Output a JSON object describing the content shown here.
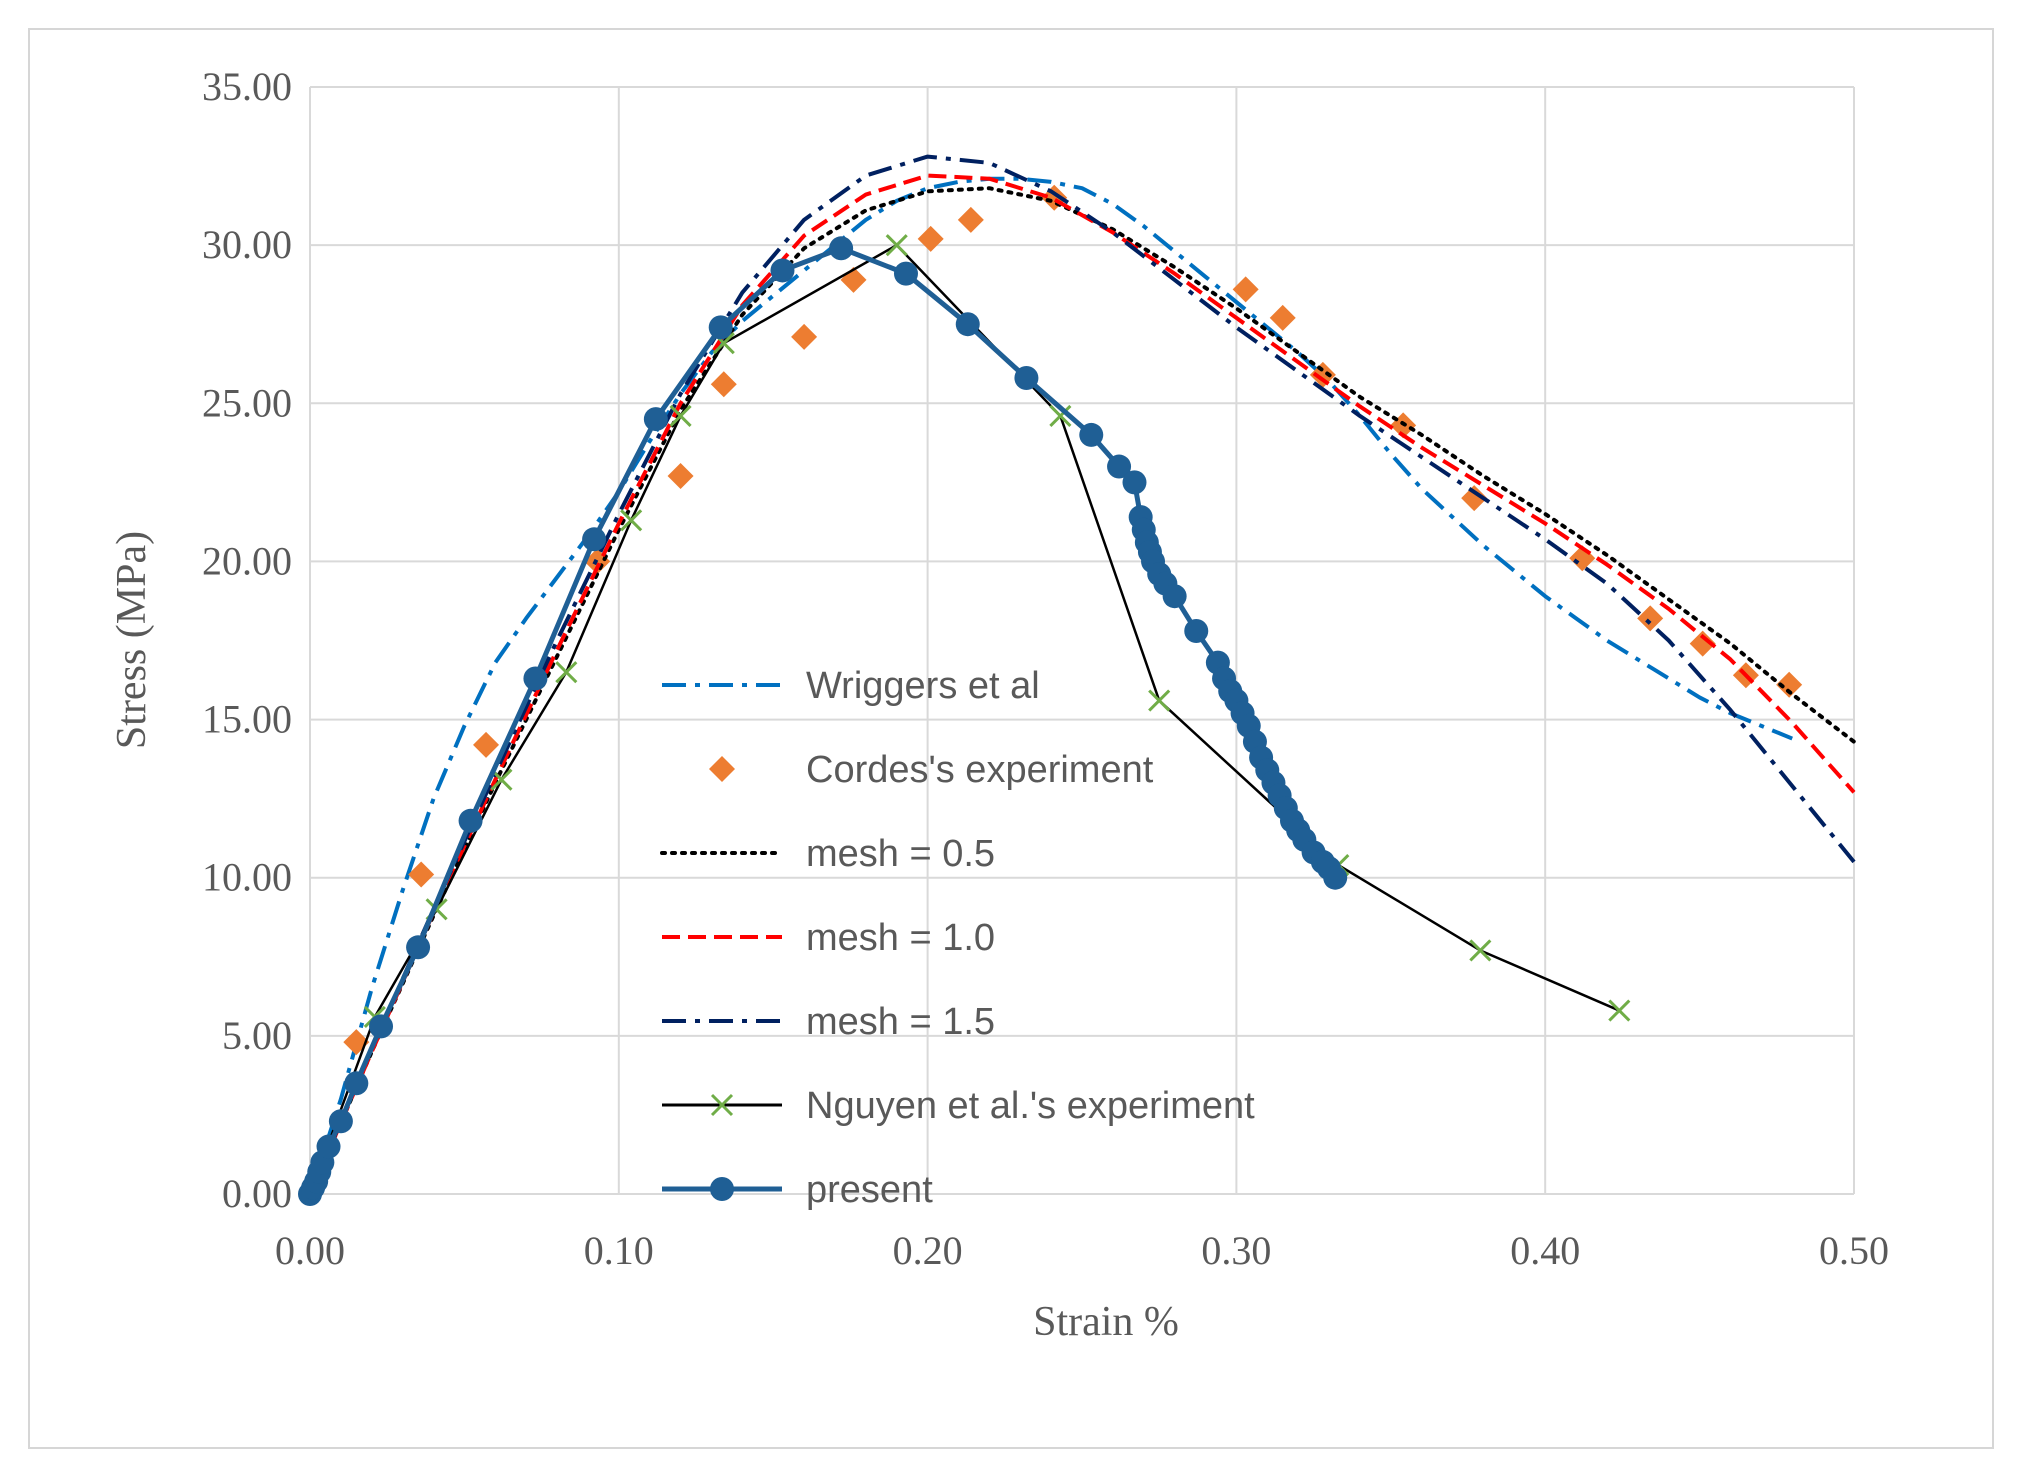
{
  "chart_data": {
    "type": "line",
    "title": "",
    "xlabel": "Strain %",
    "ylabel": "Stress (MPa)",
    "xlim": [
      0,
      0.5
    ],
    "ylim": [
      0,
      35
    ],
    "grid": true,
    "legend_position": "center",
    "x_ticks": [
      "0.00",
      "0.10",
      "0.20",
      "0.30",
      "0.40",
      "0.50"
    ],
    "y_ticks": [
      "0.00",
      "5.00",
      "10.00",
      "15.00",
      "20.00",
      "25.00",
      "30.00",
      "35.00"
    ],
    "series": [
      {
        "name": "Wriggers et al",
        "color": "#0070c0",
        "style": "dash-dot",
        "marker": "none",
        "points": [
          [
            0,
            0
          ],
          [
            0.01,
            3.0
          ],
          [
            0.02,
            6.5
          ],
          [
            0.03,
            9.6
          ],
          [
            0.04,
            12.5
          ],
          [
            0.05,
            14.8
          ],
          [
            0.06,
            16.8
          ],
          [
            0.07,
            18.2
          ],
          [
            0.08,
            19.5
          ],
          [
            0.09,
            20.8
          ],
          [
            0.1,
            22.2
          ],
          [
            0.11,
            23.8
          ],
          [
            0.12,
            25.3
          ],
          [
            0.13,
            26.6
          ],
          [
            0.14,
            27.6
          ],
          [
            0.15,
            28.4
          ],
          [
            0.16,
            29.2
          ],
          [
            0.17,
            30.0
          ],
          [
            0.18,
            30.8
          ],
          [
            0.19,
            31.4
          ],
          [
            0.2,
            31.8
          ],
          [
            0.21,
            32.0
          ],
          [
            0.22,
            32.1
          ],
          [
            0.23,
            32.1
          ],
          [
            0.24,
            32.0
          ],
          [
            0.25,
            31.8
          ],
          [
            0.26,
            31.3
          ],
          [
            0.27,
            30.6
          ],
          [
            0.28,
            29.8
          ],
          [
            0.29,
            29.0
          ],
          [
            0.3,
            28.2
          ],
          [
            0.31,
            27.4
          ],
          [
            0.32,
            26.6
          ],
          [
            0.33,
            25.7
          ],
          [
            0.34,
            24.6
          ],
          [
            0.35,
            23.4
          ],
          [
            0.36,
            22.3
          ],
          [
            0.37,
            21.4
          ],
          [
            0.38,
            20.5
          ],
          [
            0.39,
            19.7
          ],
          [
            0.4,
            18.9
          ],
          [
            0.41,
            18.2
          ],
          [
            0.42,
            17.5
          ],
          [
            0.43,
            16.9
          ],
          [
            0.44,
            16.3
          ],
          [
            0.45,
            15.7
          ],
          [
            0.46,
            15.2
          ],
          [
            0.47,
            14.8
          ],
          [
            0.48,
            14.4
          ]
        ]
      },
      {
        "name": "Cordes's experiment",
        "color": "#ed7d31",
        "style": "none",
        "marker": "diamond",
        "points": [
          [
            0.015,
            4.8
          ],
          [
            0.036,
            10.1
          ],
          [
            0.057,
            14.2
          ],
          [
            0.093,
            20.0
          ],
          [
            0.12,
            22.7
          ],
          [
            0.134,
            25.6
          ],
          [
            0.16,
            27.1
          ],
          [
            0.176,
            28.9
          ],
          [
            0.201,
            30.2
          ],
          [
            0.214,
            30.8
          ],
          [
            0.241,
            31.5
          ],
          [
            0.303,
            28.6
          ],
          [
            0.315,
            27.7
          ],
          [
            0.328,
            25.9
          ],
          [
            0.354,
            24.3
          ],
          [
            0.377,
            22.0
          ],
          [
            0.412,
            20.1
          ],
          [
            0.434,
            18.2
          ],
          [
            0.451,
            17.4
          ],
          [
            0.465,
            16.4
          ],
          [
            0.479,
            16.1
          ]
        ]
      },
      {
        "name": "mesh = 0.5",
        "color": "#000000",
        "style": "dotted",
        "marker": "none",
        "points": [
          [
            0,
            0
          ],
          [
            0.02,
            4.5
          ],
          [
            0.04,
            8.8
          ],
          [
            0.06,
            13.0
          ],
          [
            0.08,
            17.0
          ],
          [
            0.1,
            21.0
          ],
          [
            0.12,
            24.8
          ],
          [
            0.14,
            27.8
          ],
          [
            0.16,
            29.9
          ],
          [
            0.18,
            31.1
          ],
          [
            0.2,
            31.7
          ],
          [
            0.22,
            31.8
          ],
          [
            0.24,
            31.4
          ],
          [
            0.26,
            30.5
          ],
          [
            0.28,
            29.3
          ],
          [
            0.3,
            28.0
          ],
          [
            0.32,
            26.6
          ],
          [
            0.34,
            25.2
          ],
          [
            0.36,
            24.0
          ],
          [
            0.38,
            22.7
          ],
          [
            0.4,
            21.5
          ],
          [
            0.42,
            20.2
          ],
          [
            0.44,
            18.8
          ],
          [
            0.46,
            17.4
          ],
          [
            0.48,
            15.8
          ],
          [
            0.5,
            14.3
          ]
        ]
      },
      {
        "name": "mesh = 1.0",
        "color": "#ff0000",
        "style": "dashed",
        "marker": "none",
        "points": [
          [
            0,
            0
          ],
          [
            0.02,
            4.5
          ],
          [
            0.04,
            8.9
          ],
          [
            0.06,
            13.1
          ],
          [
            0.08,
            17.2
          ],
          [
            0.1,
            21.2
          ],
          [
            0.12,
            25.0
          ],
          [
            0.14,
            28.1
          ],
          [
            0.16,
            30.3
          ],
          [
            0.18,
            31.6
          ],
          [
            0.2,
            32.2
          ],
          [
            0.22,
            32.1
          ],
          [
            0.24,
            31.5
          ],
          [
            0.26,
            30.4
          ],
          [
            0.28,
            29.1
          ],
          [
            0.3,
            27.7
          ],
          [
            0.32,
            26.3
          ],
          [
            0.34,
            24.9
          ],
          [
            0.36,
            23.6
          ],
          [
            0.38,
            22.4
          ],
          [
            0.4,
            21.2
          ],
          [
            0.42,
            19.9
          ],
          [
            0.44,
            18.5
          ],
          [
            0.46,
            16.9
          ],
          [
            0.48,
            14.9
          ],
          [
            0.5,
            12.7
          ]
        ]
      },
      {
        "name": "mesh = 1.5",
        "color": "#002060",
        "style": "dash-dot",
        "marker": "none",
        "points": [
          [
            0,
            0
          ],
          [
            0.02,
            4.6
          ],
          [
            0.04,
            9.0
          ],
          [
            0.06,
            13.3
          ],
          [
            0.08,
            17.5
          ],
          [
            0.1,
            21.5
          ],
          [
            0.12,
            25.3
          ],
          [
            0.14,
            28.5
          ],
          [
            0.16,
            30.8
          ],
          [
            0.18,
            32.2
          ],
          [
            0.2,
            32.8
          ],
          [
            0.22,
            32.6
          ],
          [
            0.24,
            31.7
          ],
          [
            0.26,
            30.4
          ],
          [
            0.28,
            28.9
          ],
          [
            0.3,
            27.4
          ],
          [
            0.32,
            26.0
          ],
          [
            0.34,
            24.6
          ],
          [
            0.36,
            23.3
          ],
          [
            0.38,
            22.0
          ],
          [
            0.4,
            20.7
          ],
          [
            0.42,
            19.3
          ],
          [
            0.44,
            17.5
          ],
          [
            0.46,
            15.3
          ],
          [
            0.48,
            12.9
          ],
          [
            0.5,
            10.5
          ]
        ]
      },
      {
        "name": "Nguyen et al.'s experiment",
        "color": "#000000",
        "marker_color": "#70ad47",
        "style": "solid",
        "marker": "x",
        "points": [
          [
            0,
            0
          ],
          [
            0.021,
            5.6
          ],
          [
            0.041,
            9.0
          ],
          [
            0.062,
            13.1
          ],
          [
            0.083,
            16.5
          ],
          [
            0.104,
            21.3
          ],
          [
            0.12,
            24.6
          ],
          [
            0.134,
            26.9
          ],
          [
            0.19,
            30.0
          ],
          [
            0.243,
            24.6
          ],
          [
            0.275,
            15.6
          ],
          [
            0.333,
            10.4
          ],
          [
            0.379,
            7.7
          ],
          [
            0.424,
            5.8
          ]
        ]
      },
      {
        "name": "present",
        "color": "#1f5f95",
        "style": "solid",
        "marker": "circle",
        "points": [
          [
            0,
            0
          ],
          [
            0.001,
            0.2
          ],
          [
            0.002,
            0.4
          ],
          [
            0.003,
            0.7
          ],
          [
            0.004,
            1.0
          ],
          [
            0.006,
            1.5
          ],
          [
            0.01,
            2.3
          ],
          [
            0.015,
            3.5
          ],
          [
            0.023,
            5.3
          ],
          [
            0.035,
            7.8
          ],
          [
            0.052,
            11.8
          ],
          [
            0.073,
            16.3
          ],
          [
            0.092,
            20.7
          ],
          [
            0.112,
            24.5
          ],
          [
            0.133,
            27.4
          ],
          [
            0.153,
            29.2
          ],
          [
            0.172,
            29.9
          ],
          [
            0.193,
            29.1
          ],
          [
            0.213,
            27.5
          ],
          [
            0.232,
            25.8
          ],
          [
            0.253,
            24.0
          ],
          [
            0.262,
            23.0
          ],
          [
            0.267,
            22.5
          ],
          [
            0.269,
            21.4
          ],
          [
            0.27,
            21.0
          ],
          [
            0.271,
            20.6
          ],
          [
            0.272,
            20.3
          ],
          [
            0.273,
            20.0
          ],
          [
            0.275,
            19.6
          ],
          [
            0.277,
            19.3
          ],
          [
            0.28,
            18.9
          ],
          [
            0.287,
            17.8
          ],
          [
            0.294,
            16.8
          ],
          [
            0.296,
            16.3
          ],
          [
            0.298,
            15.9
          ],
          [
            0.3,
            15.6
          ],
          [
            0.302,
            15.2
          ],
          [
            0.304,
            14.8
          ],
          [
            0.306,
            14.3
          ],
          [
            0.308,
            13.8
          ],
          [
            0.31,
            13.4
          ],
          [
            0.312,
            13.0
          ],
          [
            0.314,
            12.6
          ],
          [
            0.316,
            12.2
          ],
          [
            0.318,
            11.8
          ],
          [
            0.32,
            11.5
          ],
          [
            0.322,
            11.2
          ],
          [
            0.325,
            10.8
          ],
          [
            0.328,
            10.5
          ],
          [
            0.33,
            10.3
          ],
          [
            0.332,
            10.0
          ]
        ]
      }
    ]
  }
}
